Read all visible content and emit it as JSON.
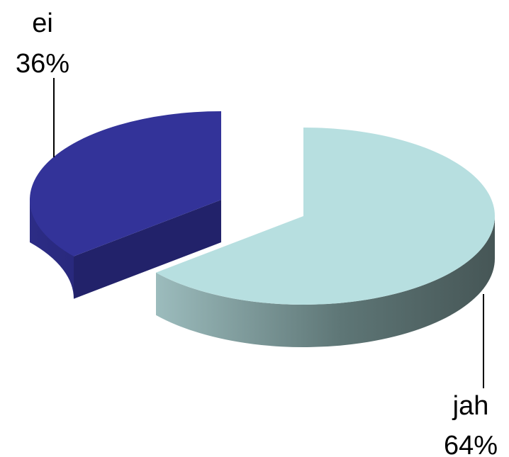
{
  "chart_data": {
    "type": "pie",
    "title": "",
    "categories": [
      "ei",
      "jah"
    ],
    "values": [
      36,
      64
    ],
    "value_labels": [
      "36%",
      "64%"
    ],
    "legend": "none",
    "colors": {
      "ei": {
        "top": "#333399",
        "side": "#22226a"
      },
      "jah": {
        "top": "#b7dfe0",
        "side_light": "#9dbdbe",
        "side_dark": "#4c5e5e"
      }
    }
  }
}
